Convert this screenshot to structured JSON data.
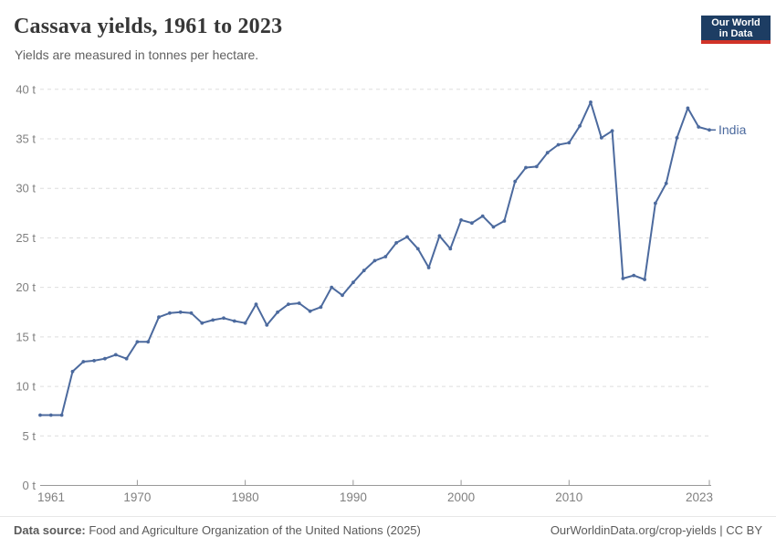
{
  "header": {
    "title": "Cassava yields, 1961 to 2023",
    "subtitle": "Yields are measured in tonnes per hectare.",
    "logo": {
      "line1": "Our World",
      "line2": "in Data"
    }
  },
  "chart_data": {
    "type": "line",
    "title": "Cassava yields, 1961 to 2023",
    "unit": "t",
    "ylabel": "tonnes per hectare",
    "ylim": [
      0,
      40
    ],
    "xlim": [
      1961,
      2023
    ],
    "grid": true,
    "y_ticks": [
      0,
      5,
      10,
      15,
      20,
      25,
      30,
      35,
      40
    ],
    "y_tick_labels": [
      "0 t",
      "5 t",
      "10 t",
      "15 t",
      "20 t",
      "25 t",
      "30 t",
      "35 t",
      "40 t"
    ],
    "x_ticks": [
      1961,
      1970,
      1980,
      1990,
      2000,
      2010,
      2023
    ],
    "x_tick_labels": [
      "1961",
      "1970",
      "1980",
      "1990",
      "2000",
      "2010",
      "2023"
    ],
    "legend_position": "end-of-line",
    "series": [
      {
        "name": "India",
        "color": "#4c6a9e",
        "x": [
          1961,
          1962,
          1963,
          1964,
          1965,
          1966,
          1967,
          1968,
          1969,
          1970,
          1971,
          1972,
          1973,
          1974,
          1975,
          1976,
          1977,
          1978,
          1979,
          1980,
          1981,
          1982,
          1983,
          1984,
          1985,
          1986,
          1987,
          1988,
          1989,
          1990,
          1991,
          1992,
          1993,
          1994,
          1995,
          1996,
          1997,
          1998,
          1999,
          2000,
          2001,
          2002,
          2003,
          2004,
          2005,
          2006,
          2007,
          2008,
          2009,
          2010,
          2011,
          2012,
          2013,
          2014,
          2015,
          2016,
          2017,
          2018,
          2019,
          2020,
          2021,
          2022,
          2023
        ],
        "values": [
          7.1,
          7.1,
          7.1,
          11.5,
          12.5,
          12.6,
          12.8,
          13.2,
          12.8,
          14.5,
          14.5,
          17.0,
          17.4,
          17.5,
          17.4,
          16.4,
          16.7,
          16.9,
          16.6,
          16.4,
          18.3,
          16.2,
          17.5,
          18.3,
          18.4,
          17.6,
          18.0,
          20.0,
          19.2,
          20.5,
          21.7,
          22.7,
          23.1,
          24.5,
          25.1,
          23.9,
          22.0,
          25.2,
          23.9,
          26.8,
          26.5,
          27.2,
          26.1,
          26.7,
          30.7,
          32.1,
          32.2,
          33.6,
          34.4,
          34.6,
          36.3,
          38.7,
          35.1,
          35.8,
          20.9,
          21.2,
          20.8,
          28.5,
          30.5,
          35.1,
          38.1,
          36.2,
          35.9
        ]
      }
    ]
  },
  "colors": {
    "line": "#4c6a9e",
    "grid": "#dedede",
    "axis": "#999999",
    "tick_text": "#808080",
    "logo_bg": "#1d3d63",
    "logo_bar": "#d13328"
  },
  "footer": {
    "datasource_label": "Data source:",
    "datasource_text": " Food and Agriculture Organization of the United Nations (2025)",
    "right_link": "OurWorldinData.org/crop-yields",
    "right_separator": " | ",
    "right_license": "CC BY"
  }
}
